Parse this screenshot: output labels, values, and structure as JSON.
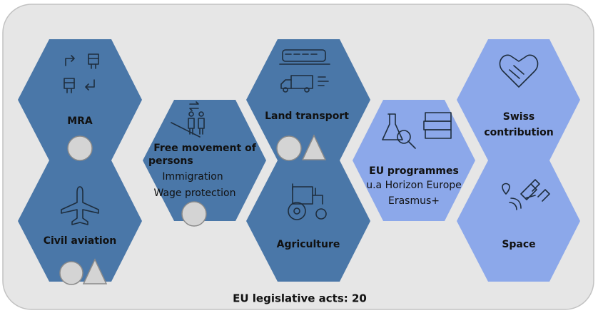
{
  "hexagons": [
    {
      "title": "MRA"
    },
    {
      "title": "Civil aviation"
    },
    {
      "title_lines": [
        "Free movement of",
        "persons"
      ],
      "subtitles": [
        "Immigration",
        "Wage protection"
      ]
    },
    {
      "title": "Land transport"
    },
    {
      "title": "Agriculture"
    },
    {
      "title": "EU programmes",
      "subtitles": [
        "u.a Horizon Europe",
        "Erasmus+"
      ]
    },
    {
      "title_lines": [
        "Swiss",
        "contribution"
      ]
    },
    {
      "title": "Space"
    }
  ],
  "footer": "EU legislative acts: 20"
}
